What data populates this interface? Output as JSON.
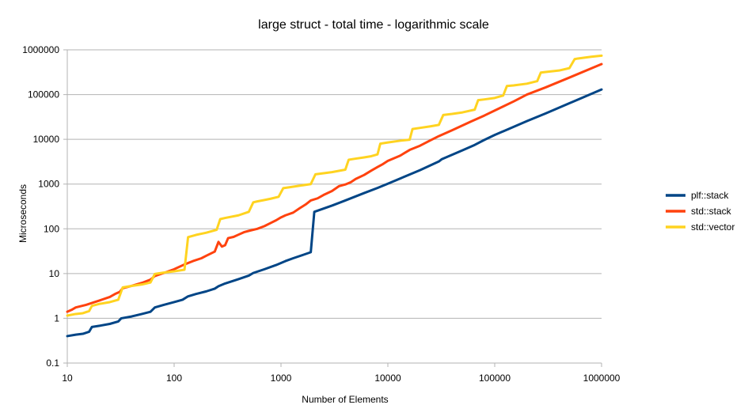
{
  "chart_data": {
    "type": "line",
    "title": "large struct - total time - logarithmic scale",
    "xlabel": "Number of Elements",
    "ylabel": "Microseconds",
    "xscale": "log",
    "yscale": "log",
    "xlim": [
      10,
      1000000
    ],
    "ylim": [
      0.1,
      1000000
    ],
    "grid": true,
    "legend_position": "right",
    "x_ticks": [
      "10",
      "100",
      "1000",
      "10000",
      "100000",
      "1000000"
    ],
    "y_ticks": [
      "0.1",
      "1",
      "10",
      "100",
      "1000",
      "10000",
      "100000",
      "1000000"
    ],
    "series": [
      {
        "name": "plf::stack",
        "color": "#004586",
        "points": [
          [
            10,
            0.4
          ],
          [
            12,
            0.43
          ],
          [
            14,
            0.45
          ],
          [
            16,
            0.5
          ],
          [
            17,
            0.64
          ],
          [
            20,
            0.68
          ],
          [
            25,
            0.75
          ],
          [
            30,
            0.85
          ],
          [
            32,
            1.0
          ],
          [
            40,
            1.1
          ],
          [
            50,
            1.25
          ],
          [
            60,
            1.4
          ],
          [
            66,
            1.75
          ],
          [
            80,
            2.0
          ],
          [
            100,
            2.3
          ],
          [
            120,
            2.6
          ],
          [
            135,
            3.1
          ],
          [
            160,
            3.5
          ],
          [
            200,
            4.0
          ],
          [
            240,
            4.6
          ],
          [
            260,
            5.2
          ],
          [
            300,
            6.0
          ],
          [
            400,
            7.5
          ],
          [
            500,
            9.0
          ],
          [
            550,
            10.3
          ],
          [
            700,
            12.5
          ],
          [
            900,
            15.5
          ],
          [
            1100,
            19
          ],
          [
            1300,
            22
          ],
          [
            1600,
            26
          ],
          [
            1900,
            30
          ],
          [
            2050,
            240
          ],
          [
            3000,
            330
          ],
          [
            4000,
            430
          ],
          [
            6000,
            630
          ],
          [
            8000,
            820
          ],
          [
            10000,
            1020
          ],
          [
            20000,
            2050
          ],
          [
            30000,
            3200
          ],
          [
            32000,
            3600
          ],
          [
            50000,
            5700
          ],
          [
            65000,
            7500
          ],
          [
            80000,
            9700
          ],
          [
            100000,
            12500
          ],
          [
            200000,
            25500
          ],
          [
            300000,
            38000
          ],
          [
            500000,
            64000
          ],
          [
            1000000,
            130000
          ]
        ]
      },
      {
        "name": "std::stack",
        "color": "#ff420e",
        "points": [
          [
            10,
            1.4
          ],
          [
            11,
            1.55
          ],
          [
            12,
            1.75
          ],
          [
            15,
            2.0
          ],
          [
            20,
            2.5
          ],
          [
            25,
            3.0
          ],
          [
            28,
            3.5
          ],
          [
            31,
            3.9
          ],
          [
            33,
            4.7
          ],
          [
            40,
            5.3
          ],
          [
            50,
            6.2
          ],
          [
            60,
            7.3
          ],
          [
            66,
            8.8
          ],
          [
            80,
            10.3
          ],
          [
            100,
            12.5
          ],
          [
            125,
            16
          ],
          [
            150,
            19
          ],
          [
            180,
            22
          ],
          [
            200,
            25
          ],
          [
            240,
            31
          ],
          [
            260,
            51
          ],
          [
            280,
            40
          ],
          [
            300,
            43
          ],
          [
            320,
            62
          ],
          [
            360,
            66
          ],
          [
            400,
            74
          ],
          [
            450,
            84
          ],
          [
            500,
            90
          ],
          [
            600,
            100
          ],
          [
            700,
            115
          ],
          [
            800,
            135
          ],
          [
            900,
            155
          ],
          [
            1000,
            180
          ],
          [
            1100,
            200
          ],
          [
            1300,
            230
          ],
          [
            1500,
            290
          ],
          [
            1700,
            350
          ],
          [
            1900,
            430
          ],
          [
            2200,
            480
          ],
          [
            2500,
            570
          ],
          [
            3000,
            700
          ],
          [
            3500,
            900
          ],
          [
            4000,
            980
          ],
          [
            4500,
            1100
          ],
          [
            5000,
            1300
          ],
          [
            6000,
            1600
          ],
          [
            7000,
            2000
          ],
          [
            8000,
            2400
          ],
          [
            9000,
            2800
          ],
          [
            10000,
            3300
          ],
          [
            13000,
            4300
          ],
          [
            16000,
            5800
          ],
          [
            20000,
            7200
          ],
          [
            25000,
            9500
          ],
          [
            30000,
            11800
          ],
          [
            40000,
            16000
          ],
          [
            60000,
            25000
          ],
          [
            80000,
            34000
          ],
          [
            100000,
            44000
          ],
          [
            150000,
            70000
          ],
          [
            200000,
            100000
          ],
          [
            300000,
            145000
          ],
          [
            500000,
            240000
          ],
          [
            1000000,
            480000
          ]
        ]
      },
      {
        "name": "std::vector",
        "color": "#ffd320",
        "points": [
          [
            10,
            1.15
          ],
          [
            12,
            1.25
          ],
          [
            14,
            1.3
          ],
          [
            16,
            1.45
          ],
          [
            17,
            1.9
          ],
          [
            20,
            2.1
          ],
          [
            25,
            2.3
          ],
          [
            30,
            2.6
          ],
          [
            33,
            4.9
          ],
          [
            40,
            5.3
          ],
          [
            50,
            5.7
          ],
          [
            60,
            6.3
          ],
          [
            66,
            9.8
          ],
          [
            80,
            10.5
          ],
          [
            100,
            11.2
          ],
          [
            125,
            12.2
          ],
          [
            135,
            65
          ],
          [
            160,
            73
          ],
          [
            200,
            82
          ],
          [
            250,
            95
          ],
          [
            270,
            165
          ],
          [
            300,
            175
          ],
          [
            400,
            200
          ],
          [
            500,
            240
          ],
          [
            550,
            390
          ],
          [
            600,
            410
          ],
          [
            700,
            440
          ],
          [
            800,
            470
          ],
          [
            950,
            520
          ],
          [
            1050,
            810
          ],
          [
            1200,
            850
          ],
          [
            1500,
            920
          ],
          [
            1900,
            1000
          ],
          [
            2100,
            1650
          ],
          [
            3000,
            1850
          ],
          [
            4000,
            2100
          ],
          [
            4300,
            3500
          ],
          [
            5000,
            3700
          ],
          [
            6000,
            3950
          ],
          [
            7000,
            4200
          ],
          [
            8000,
            4600
          ],
          [
            8500,
            8000
          ],
          [
            10000,
            8500
          ],
          [
            13000,
            9300
          ],
          [
            16000,
            9800
          ],
          [
            17000,
            17000
          ],
          [
            20000,
            18000
          ],
          [
            25000,
            19500
          ],
          [
            30000,
            21000
          ],
          [
            33000,
            35000
          ],
          [
            40000,
            37000
          ],
          [
            50000,
            40000
          ],
          [
            65000,
            46000
          ],
          [
            70000,
            75000
          ],
          [
            80000,
            78000
          ],
          [
            100000,
            84000
          ],
          [
            120000,
            95000
          ],
          [
            130000,
            155000
          ],
          [
            150000,
            160000
          ],
          [
            200000,
            175000
          ],
          [
            250000,
            200000
          ],
          [
            270000,
            310000
          ],
          [
            300000,
            320000
          ],
          [
            400000,
            345000
          ],
          [
            500000,
            390000
          ],
          [
            560000,
            620000
          ],
          [
            600000,
            640000
          ],
          [
            800000,
            700000
          ],
          [
            1000000,
            740000
          ]
        ]
      }
    ]
  }
}
